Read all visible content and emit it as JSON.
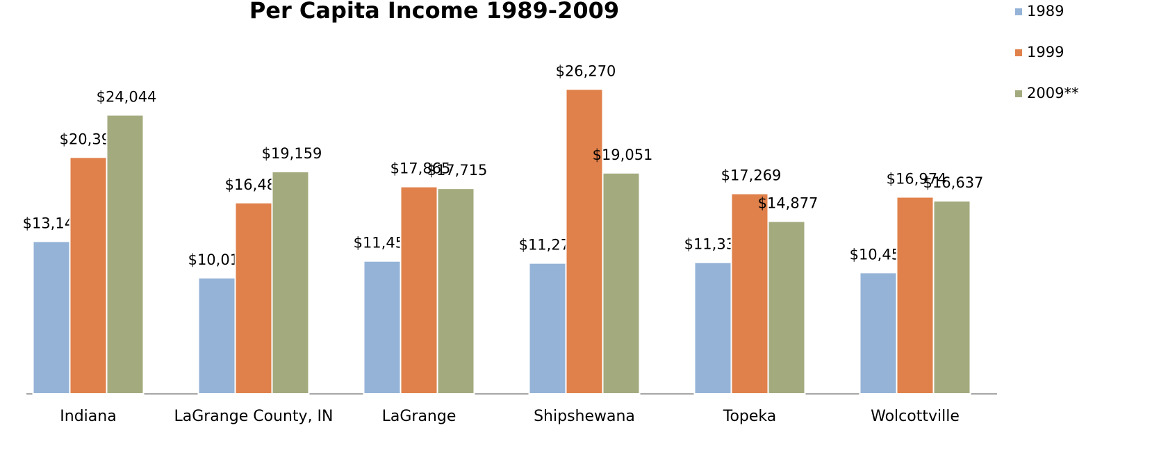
{
  "chart_data": {
    "type": "bar",
    "title": "Per Capita Income 1989-2009",
    "categories": [
      "Indiana",
      "LaGrange County, IN",
      "LaGrange",
      "Shipshewana",
      "Topeka",
      "Wolcottville"
    ],
    "series": [
      {
        "name": "1989",
        "color": "#95b3d7",
        "values": [
          13149,
          10011,
          11454,
          11278,
          11334,
          10456
        ],
        "value_labels": [
          "$13,149",
          "$10,011",
          "$11,454",
          "$11,278",
          "$11,334",
          "$10,456"
        ]
      },
      {
        "name": "1999",
        "color": "#e0804a",
        "values": [
          20397,
          16481,
          17865,
          26270,
          17269,
          16974
        ],
        "value_labels": [
          "$20,397",
          "$16,481",
          "$17,865",
          "$26,270",
          "$17,269",
          "$16,974"
        ]
      },
      {
        "name": "2009**",
        "color": "#a3ab7e",
        "values": [
          24044,
          19159,
          17715,
          19051,
          14877,
          16637
        ],
        "value_labels": [
          "$24,044",
          "$19,159",
          "$17,715",
          "$19,051",
          "$14,877",
          "$16,637"
        ]
      }
    ],
    "ylim": [
      0,
      30000
    ],
    "legend": "right"
  }
}
